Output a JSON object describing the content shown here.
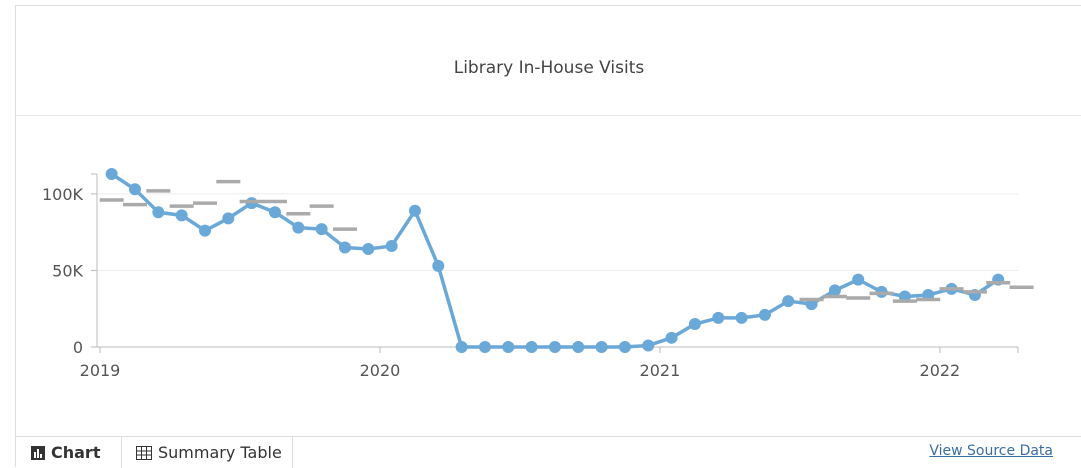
{
  "chart_data": {
    "type": "line",
    "title": "Library In-House Visits",
    "x": [
      "2019-01",
      "2019-02",
      "2019-03",
      "2019-04",
      "2019-05",
      "2019-06",
      "2019-07",
      "2019-08",
      "2019-09",
      "2019-10",
      "2019-11",
      "2019-12",
      "2020-01",
      "2020-02",
      "2020-03",
      "2020-04",
      "2020-05",
      "2020-06",
      "2020-07",
      "2020-08",
      "2020-09",
      "2020-10",
      "2020-11",
      "2020-12",
      "2021-01",
      "2021-02",
      "2021-03",
      "2021-04",
      "2021-05",
      "2021-06",
      "2021-07",
      "2021-08",
      "2021-09",
      "2021-10",
      "2021-11",
      "2021-12",
      "2022-01",
      "2022-02",
      "2022-03",
      "2022-04"
    ],
    "series": [
      {
        "color": "#6aa8d8",
        "style": "line-markers",
        "values": [
          113000,
          103000,
          88000,
          86000,
          76000,
          84000,
          94000,
          88000,
          78000,
          77000,
          65000,
          64000,
          66000,
          89000,
          53000,
          0,
          0,
          0,
          0,
          0,
          0,
          0,
          0,
          1000,
          6000,
          15000,
          19000,
          19000,
          21000,
          30000,
          28000,
          37000,
          44000,
          36000,
          33000,
          34000,
          38000,
          34000,
          44000,
          null
        ]
      },
      {
        "color": "#aaaaaa",
        "style": "dash",
        "values": [
          96000,
          93000,
          102000,
          92000,
          94000,
          108000,
          95000,
          95000,
          87000,
          92000,
          77000,
          null,
          null,
          null,
          null,
          null,
          null,
          null,
          null,
          null,
          null,
          null,
          null,
          null,
          null,
          null,
          null,
          null,
          null,
          null,
          31000,
          33000,
          32000,
          35000,
          30000,
          31000,
          38000,
          36000,
          42000,
          39000
        ]
      }
    ],
    "ylim": [
      0,
      113000
    ],
    "yticks": [
      0,
      {
        "value": 50000,
        "label": "50K"
      },
      {
        "value": 100000,
        "label": "100K"
      }
    ],
    "xticks": [
      "2019",
      "2020",
      "2021",
      "2022"
    ],
    "grid": true
  },
  "ui": {
    "tabs": [
      "Chart",
      "Summary Table"
    ],
    "link": "View Source Data"
  }
}
